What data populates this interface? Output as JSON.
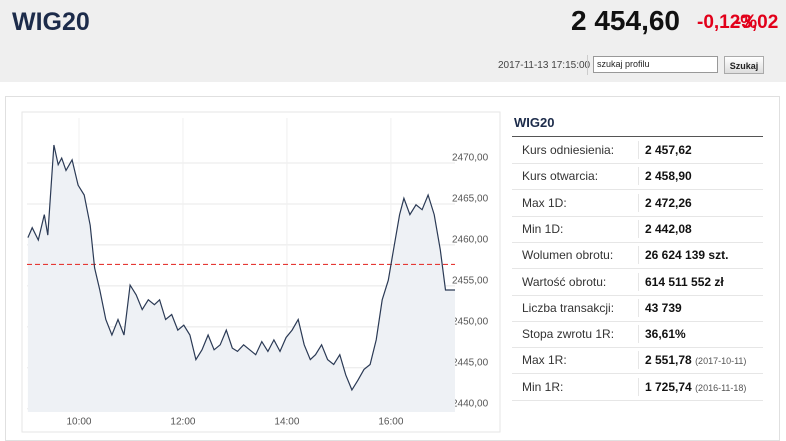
{
  "header": {
    "title": "WIG20",
    "price": "2 454,60",
    "change_pct": "-0,12%",
    "change": "-3,02",
    "timestamp": "2017-11-13 17:15:00",
    "search_placeholder": "szukaj profilu",
    "search_button": "Szukaj"
  },
  "chart_data": {
    "type": "line",
    "x": [
      "09:01",
      "09:06",
      "09:13",
      "09:20",
      "09:24",
      "09:31",
      "09:36",
      "09:40",
      "09:45",
      "09:52",
      "09:59",
      "10:06",
      "10:13",
      "10:18",
      "10:24",
      "10:31",
      "10:38",
      "10:45",
      "10:52",
      "10:59",
      "11:06",
      "11:13",
      "11:20",
      "11:27",
      "11:33",
      "11:40",
      "11:47",
      "11:54",
      "12:01",
      "12:08",
      "12:15",
      "12:22",
      "12:29",
      "12:36",
      "12:43",
      "12:50",
      "12:57",
      "13:03",
      "13:10",
      "13:17",
      "13:24",
      "13:31",
      "13:38",
      "13:45",
      "13:52",
      "13:59",
      "14:06",
      "14:13",
      "14:20",
      "14:27",
      "14:33",
      "14:40",
      "14:47",
      "14:54",
      "15:01",
      "15:08",
      "15:15",
      "15:22",
      "15:29",
      "15:36",
      "15:43",
      "15:50",
      "15:57",
      "16:03",
      "16:10",
      "16:15",
      "16:22",
      "16:29",
      "16:36",
      "16:43",
      "16:50",
      "16:57",
      "17:03",
      "17:14"
    ],
    "series": [
      {
        "color": "#2b3a55",
        "values": [
          2460.9,
          2462.1,
          2460.6,
          2463.7,
          2461.2,
          2472.2,
          2469.8,
          2470.6,
          2469.1,
          2470.4,
          2467.3,
          2466.1,
          2462.4,
          2457.2,
          2454.5,
          2450.9,
          2449.0,
          2450.9,
          2449.0,
          2455.1,
          2453.9,
          2452.1,
          2453.3,
          2452.7,
          2453.3,
          2450.9,
          2451.5,
          2449.6,
          2450.2,
          2449.0,
          2446.0,
          2447.2,
          2449.0,
          2447.2,
          2447.8,
          2449.6,
          2447.4,
          2447.0,
          2447.8,
          2447.2,
          2446.6,
          2448.2,
          2447.0,
          2448.4,
          2447.0,
          2448.7,
          2449.6,
          2450.9,
          2447.8,
          2446.0,
          2446.6,
          2447.8,
          2446.0,
          2445.4,
          2446.6,
          2444.1,
          2442.3,
          2443.5,
          2444.8,
          2445.4,
          2448.4,
          2453.3,
          2455.7,
          2459.4,
          2463.7,
          2465.7,
          2463.7,
          2464.9,
          2464.3,
          2466.1,
          2463.7,
          2459.4,
          2454.5,
          2454.5
        ]
      }
    ],
    "reference_line": 2457.62,
    "reference_color": "#e53935",
    "area_color": "#eef1f5",
    "xlim": [
      "09:00",
      "17:14"
    ],
    "xticks": [
      "10:00",
      "12:00",
      "14:00",
      "16:00"
    ],
    "ylim": [
      2439.6,
      2475.5
    ],
    "yticks": [
      {
        "value": 2440,
        "label": "2440,00"
      },
      {
        "value": 2445,
        "label": "2445,00"
      },
      {
        "value": 2450,
        "label": "2450,00"
      },
      {
        "value": 2455,
        "label": "2455,00"
      },
      {
        "value": 2460,
        "label": "2460,00"
      },
      {
        "value": 2465,
        "label": "2465,00"
      },
      {
        "value": 2470,
        "label": "2470,00"
      }
    ],
    "grid": true
  },
  "table": {
    "title": "WIG20",
    "rows": [
      {
        "label": "Kurs odniesienia:",
        "value": "2 457,62"
      },
      {
        "label": "Kurs otwarcia:",
        "value": "2 458,90"
      },
      {
        "label": "Max 1D:",
        "value": "2 472,26"
      },
      {
        "label": "Min 1D:",
        "value": "2 442,08"
      },
      {
        "label": "Wolumen obrotu:",
        "value": "26 624 139 szt."
      },
      {
        "label": "Wartość obrotu:",
        "value": "614 511 552 zł"
      },
      {
        "label": "Liczba transakcji:",
        "value": "43 739"
      },
      {
        "label": "Stopa zwrotu 1R:",
        "value": "36,61%"
      },
      {
        "label": "Max 1R:",
        "value": "2 551,78",
        "date": "(2017-10-11)"
      },
      {
        "label": "Min 1R:",
        "value": "1 725,74",
        "date": "(2016-11-18)"
      }
    ]
  }
}
